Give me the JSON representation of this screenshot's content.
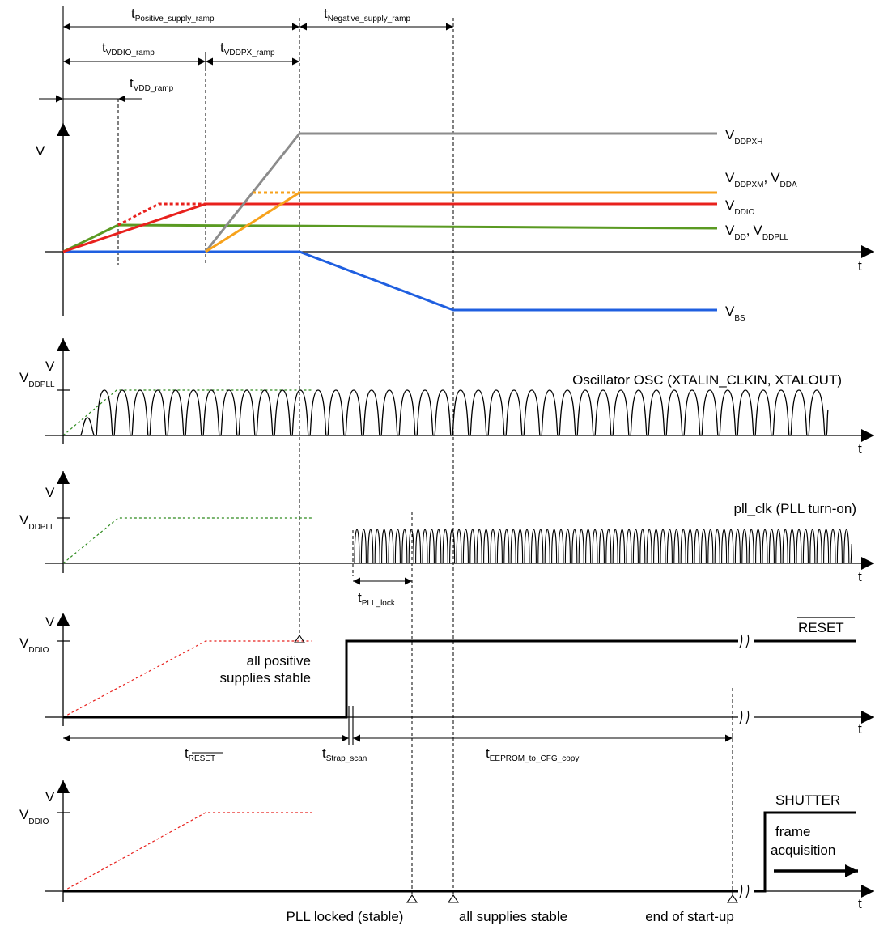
{
  "intervals": {
    "positive_supply_ramp": {
      "main": "t",
      "sub": "Positive_supply_ramp"
    },
    "negative_supply_ramp": {
      "main": "t",
      "sub": "Negative_supply_ramp"
    },
    "vddio_ramp": {
      "main": "t",
      "sub": "VDDIO_ramp"
    },
    "vddpx_ramp": {
      "main": "t",
      "sub": "VDDPX_ramp"
    },
    "vdd_ramp": {
      "main": "t",
      "sub": "VDD_ramp"
    },
    "pll_lock": {
      "main": "t",
      "sub": "PLL_lock"
    },
    "reset": {
      "main": "t",
      "sub": "RESET"
    },
    "strap_scan": {
      "main": "t",
      "sub": "Strap_scan"
    },
    "eeprom_copy": {
      "main": "t",
      "sub": "EEPROM_to_CFG_copy"
    }
  },
  "axis": {
    "v": "V",
    "t": "t"
  },
  "supplies": {
    "vddpxh": {
      "main": "V",
      "sub": "DDPXH",
      "color": "#8c8c8c"
    },
    "vddpxm": {
      "main": "V",
      "sub": "DDPXM",
      "main2": "V",
      "sub2": "DDA",
      "sep": ",",
      "color": "#f7a21b"
    },
    "vddio": {
      "main": "V",
      "sub": "DDIO",
      "color": "#e8211d"
    },
    "vdd": {
      "main": "V",
      "sub": "DD",
      "main2": "V",
      "sub2": "DDPLL",
      "sep": ",",
      "color": "#5a9a22"
    },
    "vbs": {
      "main": "V",
      "sub": "BS",
      "color": "#1f5fe0"
    }
  },
  "level_labels": {
    "vddpll": {
      "main": "V",
      "sub": "DDPLL"
    },
    "vddio": {
      "main": "V",
      "sub": "DDIO"
    }
  },
  "signals": {
    "oscillator": "Oscillator OSC (XTALIN_CLKIN, XTALOUT)",
    "pll_clk": "pll_clk (PLL turn-on)",
    "reset": "RESET",
    "shutter": "SHUTTER",
    "frame_acq_1": "frame",
    "frame_acq_2": "acquisition"
  },
  "events": {
    "positive_stable_1": "all positive",
    "positive_stable_2": "supplies stable",
    "pll_locked": "PLL locked (stable)",
    "all_stable": "all supplies stable",
    "end_startup": "end of start-up"
  },
  "colors": {
    "ref_dashed_green": "#2e8b1e",
    "ref_dashed_red": "#e8211d"
  }
}
